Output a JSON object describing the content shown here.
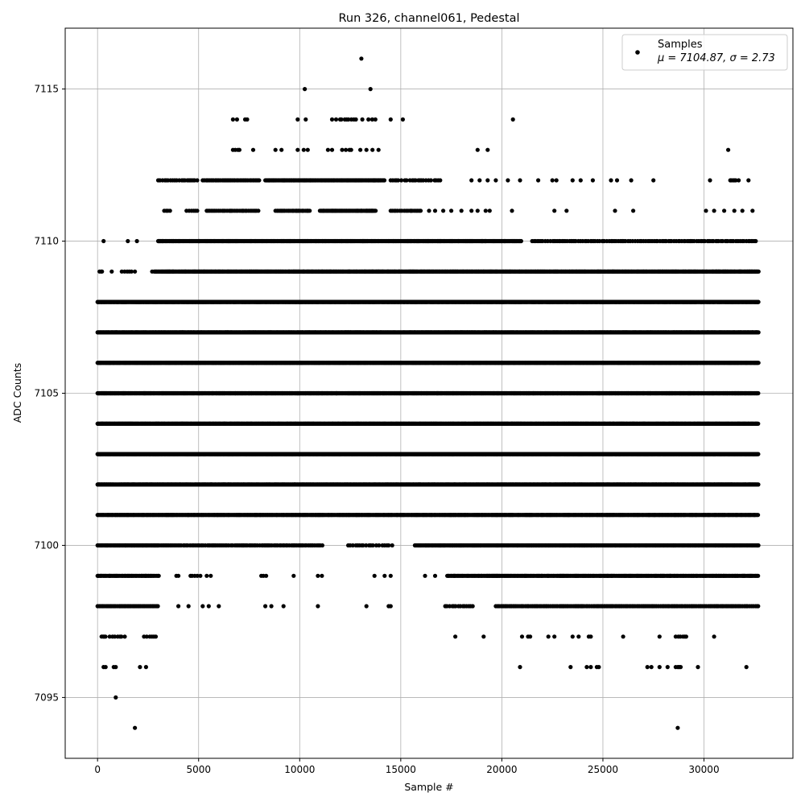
{
  "chart_data": {
    "type": "scatter",
    "title": "Run 326, channel061, Pedestal",
    "xlabel": "Sample #",
    "ylabel": "ADC Counts",
    "xlim": [
      -1600,
      34400
    ],
    "ylim": [
      7093,
      7117
    ],
    "xticks": [
      0,
      5000,
      10000,
      15000,
      20000,
      25000,
      30000
    ],
    "yticks": [
      7095,
      7100,
      7105,
      7110,
      7115
    ],
    "grid": true,
    "legend": {
      "placement": "top-right",
      "label": "Samples",
      "stats": "μ = 7104.87, σ = 2.73"
    },
    "marker_color": "#000000",
    "series": [
      {
        "name": "Samples",
        "levels": [
          {
            "y": 7116,
            "points": [
              13050
            ],
            "segments": []
          },
          {
            "y": 7115,
            "points": [
              10250,
              13500
            ],
            "segments": []
          },
          {
            "y": 7114,
            "points": [
              6700,
              6900,
              7300,
              7400,
              9900,
              10300,
              11600,
              11800,
              13100,
              14500,
              15100,
              20550
            ],
            "segments": [
              [
                12000,
                12900,
                120
              ],
              [
                13400,
                13800,
                150
              ]
            ]
          },
          {
            "y": 7113,
            "points": [
              7700,
              8800,
              9100,
              9900,
              10200,
              10400,
              11400,
              11600,
              13000,
              13300,
              13600,
              13900,
              18800,
              19300,
              31200
            ],
            "segments": [
              [
                6700,
                7100,
                100
              ],
              [
                12100,
                12700,
                150
              ]
            ]
          },
          {
            "y": 7112,
            "points": [
              18500,
              18900,
              19300,
              19700,
              20300,
              20900,
              21800,
              22500,
              22700,
              23500,
              23900,
              24500,
              25400,
              25700,
              26400,
              27500,
              30300,
              32200
            ],
            "segments": [
              [
                3000,
                5000,
                90
              ],
              [
                5200,
                8000,
                70
              ],
              [
                8300,
                14200,
                40
              ],
              [
                14500,
                17000,
                120
              ],
              [
                31300,
                31800,
                100
              ]
            ]
          },
          {
            "y": 7111,
            "points": [
              16400,
              16700,
              17100,
              17500,
              18000,
              18500,
              18800,
              19200,
              19400,
              20500,
              22600,
              23200,
              25600,
              26500,
              30100,
              30500,
              31000,
              31500,
              31900,
              32400
            ],
            "segments": [
              [
                3300,
                3700,
                80
              ],
              [
                4400,
                5000,
                100
              ],
              [
                5400,
                8000,
                70
              ],
              [
                8800,
                10500,
                60
              ],
              [
                11000,
                13800,
                40
              ],
              [
                14500,
                16000,
                80
              ]
            ]
          },
          {
            "y": 7110,
            "points": [
              300,
              1500,
              1950
            ],
            "segments": [
              [
                3000,
                21000,
                35
              ],
              [
                21500,
                32600,
                90
              ]
            ]
          },
          {
            "y": 7109,
            "points": [
              700,
              1850,
              2700
            ],
            "segments": [
              [
                100,
                300,
                80
              ],
              [
                1200,
                1700,
                100
              ],
              [
                2800,
                32700,
                30
              ]
            ]
          },
          {
            "y": 7108,
            "points": [],
            "segments": [
              [
                0,
                32700,
                25
              ]
            ]
          },
          {
            "y": 7107,
            "points": [],
            "segments": [
              [
                0,
                32700,
                25
              ]
            ]
          },
          {
            "y": 7106,
            "points": [],
            "segments": [
              [
                0,
                32700,
                20
              ]
            ]
          },
          {
            "y": 7105,
            "points": [],
            "segments": [
              [
                0,
                32700,
                20
              ]
            ]
          },
          {
            "y": 7104,
            "points": [],
            "segments": [
              [
                0,
                32700,
                20
              ]
            ]
          },
          {
            "y": 7103,
            "points": [],
            "segments": [
              [
                0,
                32700,
                20
              ]
            ]
          },
          {
            "y": 7102,
            "points": [],
            "segments": [
              [
                0,
                32700,
                25
              ]
            ]
          },
          {
            "y": 7101,
            "points": [],
            "segments": [
              [
                0,
                32700,
                35
              ]
            ]
          },
          {
            "y": 7100,
            "points": [],
            "segments": [
              [
                0,
                3000,
                30
              ],
              [
                3000,
                11200,
                80
              ],
              [
                12400,
                14600,
                120
              ],
              [
                15700,
                32700,
                35
              ]
            ]
          },
          {
            "y": 7099,
            "points": [
              3900,
              4000,
              5400,
              5600,
              9700,
              10900,
              11100,
              13700,
              14200,
              14500,
              16200,
              16700
            ],
            "segments": [
              [
                0,
                3100,
                50
              ],
              [
                4600,
                5100,
                120
              ],
              [
                8100,
                8400,
                100
              ],
              [
                17300,
                32700,
                45
              ]
            ]
          },
          {
            "y": 7098,
            "points": [
              4000,
              4500,
              5200,
              5500,
              6000,
              8300,
              8600,
              9200,
              10900,
              13300,
              14400,
              14500
            ],
            "segments": [
              [
                0,
                3000,
                60
              ],
              [
                17200,
                18600,
                100
              ],
              [
                19700,
                32700,
                70
              ]
            ]
          },
          {
            "y": 7097,
            "points": [
              17700,
              19100,
              21000,
              21300,
              21400,
              22300,
              22600,
              23500,
              23800,
              24300,
              24400,
              26000,
              27800,
              30500
            ],
            "segments": [
              [
                200,
                400,
                100
              ],
              [
                600,
                900,
                100
              ],
              [
                1000,
                1400,
                130
              ],
              [
                2300,
                2900,
                120
              ],
              [
                28600,
                29200,
                100
              ]
            ]
          },
          {
            "y": 7096,
            "points": [
              300,
              400,
              800,
              900,
              2100,
              2400,
              20900,
              23400,
              24200,
              24400,
              24700,
              24800,
              27200,
              27400,
              27800,
              28200,
              29700,
              32100
            ],
            "segments": [
              [
                28600,
                28900,
                100
              ]
            ]
          },
          {
            "y": 7095,
            "points": [
              900
            ],
            "segments": []
          },
          {
            "y": 7094,
            "points": [
              1850,
              28700
            ],
            "segments": []
          }
        ]
      }
    ]
  }
}
